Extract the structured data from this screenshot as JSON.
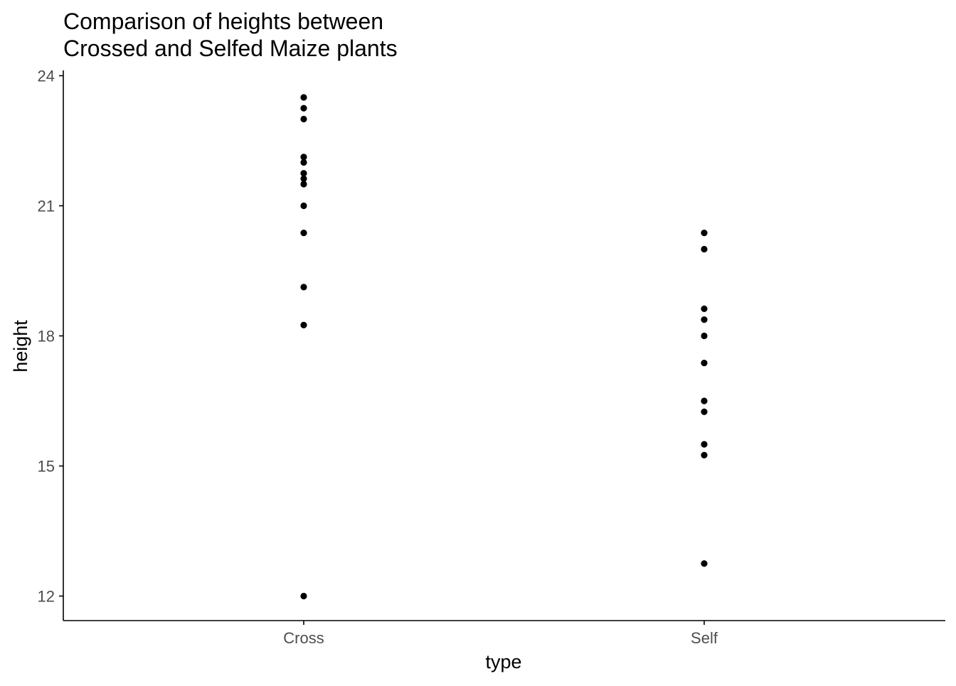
{
  "chart_data": {
    "type": "scatter",
    "title": [
      "Comparison of heights between",
      "Crossed and Selfed Maize plants"
    ],
    "xlabel": "type",
    "ylabel": "height",
    "categories": [
      "Cross",
      "Self"
    ],
    "yticks": [
      12,
      15,
      18,
      21,
      24
    ],
    "ylim": [
      11.45,
      24.1
    ],
    "grid": false,
    "legend": "none",
    "point_color": "#000000",
    "series": [
      {
        "category": "Cross",
        "values": [
          23.5,
          23.25,
          23.0,
          22.125,
          22.0,
          21.75,
          21.625,
          21.5,
          21.0,
          20.375,
          19.125,
          18.25,
          12.0
        ]
      },
      {
        "category": "Self",
        "values": [
          20.375,
          20.0,
          18.625,
          18.375,
          18.0,
          17.375,
          16.5,
          16.25,
          15.5,
          15.25,
          12.75
        ]
      }
    ]
  }
}
